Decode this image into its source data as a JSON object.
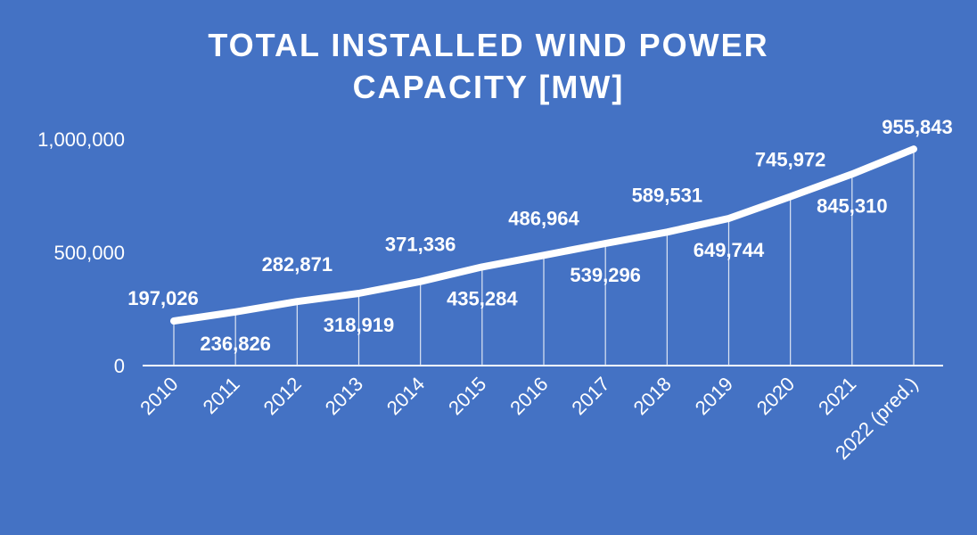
{
  "chart_data": {
    "type": "line",
    "title_lines": [
      "TOTAL INSTALLED WIND POWER",
      "CAPACITY [MW]"
    ],
    "categories": [
      "2010",
      "2011",
      "2012",
      "2013",
      "2014",
      "2015",
      "2016",
      "2017",
      "2018",
      "2019",
      "2020",
      "2021",
      "2022 (pred.)"
    ],
    "values": [
      197026,
      236826,
      282871,
      318919,
      371336,
      435284,
      486964,
      539296,
      589531,
      649744,
      745972,
      845310,
      955843
    ],
    "data_labels": [
      "197,026",
      "236,826",
      "282,871",
      "318,919",
      "371,336",
      "435,284",
      "486,964",
      "539,296",
      "589,531",
      "649,744",
      "745,972",
      "845,310",
      "955,843"
    ],
    "y_ticks": [
      0,
      500000,
      1000000
    ],
    "y_tick_labels": [
      "0",
      "500,000",
      "1,000,000"
    ],
    "ylim": [
      0,
      1000000
    ],
    "grid": false,
    "legend": "none",
    "colors": {
      "background": "#4472c4",
      "line": "#ffffff",
      "text": "#ffffff"
    }
  }
}
